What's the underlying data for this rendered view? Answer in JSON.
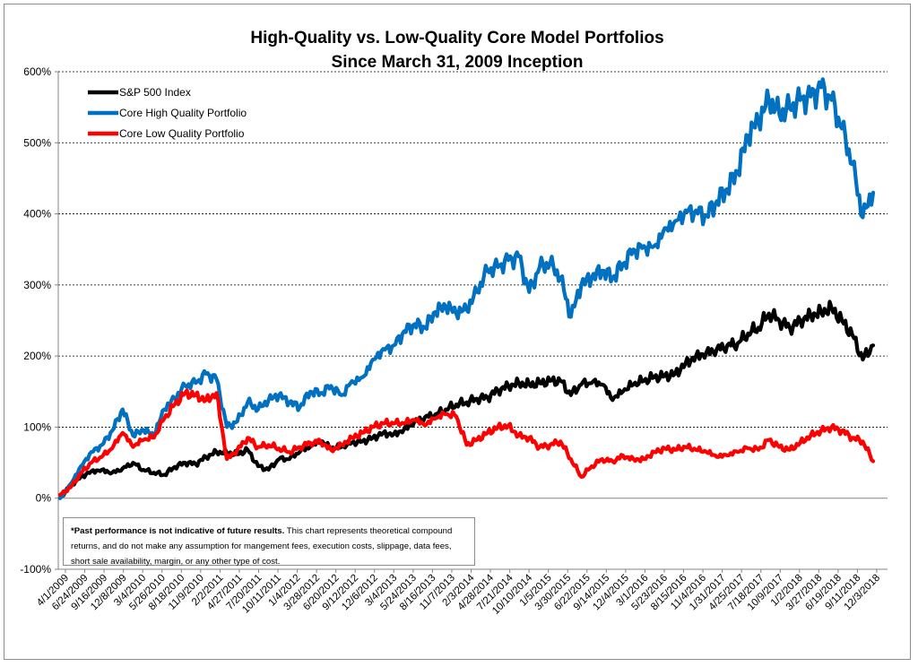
{
  "chart_data": {
    "type": "line",
    "title": "High-Quality vs. Low-Quality Core Model Portfolios",
    "subtitle": "Since March 31, 2009 Inception",
    "xlabel": "",
    "ylabel": "",
    "ylim": [
      -100,
      600
    ],
    "y_ticks": [
      -100,
      0,
      100,
      200,
      300,
      400,
      500,
      600
    ],
    "y_tick_labels": [
      "-100%",
      "0%",
      "100%",
      "200%",
      "300%",
      "400%",
      "500%",
      "600%"
    ],
    "x_tick_labels": [
      "4/1/2009",
      "6/24/2009",
      "9/16/2009",
      "12/8/2009",
      "3/4/2010",
      "5/26/2010",
      "8/18/2010",
      "11/9/2010",
      "2/2/2011",
      "4/27/2011",
      "7/20/2011",
      "10/11/2011",
      "1/4/2012",
      "3/28/2012",
      "6/20/2012",
      "9/12/2012",
      "12/6/2012",
      "3/4/2013",
      "5/24/2013",
      "8/16/2013",
      "11/7/2013",
      "2/3/2014",
      "4/28/2014",
      "7/21/2014",
      "10/10/2014",
      "1/5/2015",
      "3/30/2015",
      "6/22/2015",
      "9/14/2015",
      "12/4/2015",
      "3/1/2016",
      "5/23/2016",
      "8/15/2016",
      "11/4/2016",
      "1/31/2017",
      "4/25/2017",
      "7/18/2017",
      "10/9/2017",
      "1/2/2018",
      "3/27/2018",
      "6/19/2018",
      "9/11/2018",
      "12/3/2018"
    ],
    "legend_position": "top-left",
    "series": [
      {
        "name": "S&P 500 Index",
        "color": "#000000",
        "values": [
          0,
          18,
          30,
          38,
          40,
          36,
          42,
          50,
          40,
          36,
          33,
          44,
          50,
          48,
          58,
          65,
          64,
          62,
          68,
          45,
          40,
          55,
          55,
          65,
          72,
          80,
          70,
          72,
          78,
          80,
          85,
          92,
          90,
          97,
          108,
          114,
          118,
          125,
          132,
          135,
          140,
          142,
          152,
          158,
          162,
          160,
          162,
          165,
          165,
          145,
          160,
          162,
          160,
          138,
          150,
          160,
          165,
          170,
          172,
          175,
          190,
          200,
          205,
          210,
          215,
          218,
          232,
          240,
          260,
          250,
          240,
          250,
          258,
          262,
          268,
          250,
          230,
          195,
          215
        ]
      },
      {
        "name": "Core High Quality Portfolio",
        "color": "#0070c0",
        "values": [
          0,
          20,
          45,
          65,
          75,
          95,
          125,
          88,
          96,
          88,
          125,
          140,
          158,
          162,
          175,
          168,
          100,
          108,
          135,
          125,
          138,
          145,
          135,
          128,
          150,
          148,
          158,
          145,
          165,
          170,
          195,
          210,
          215,
          235,
          245,
          240,
          262,
          270,
          260,
          265,
          290,
          320,
          325,
          335,
          340,
          290,
          325,
          330,
          310,
          255,
          300,
          310,
          320,
          310,
          330,
          350,
          355,
          355,
          380,
          390,
          405,
          405,
          398,
          418,
          435,
          460,
          510,
          530,
          560,
          540,
          548,
          560,
          565,
          578,
          560,
          520,
          470,
          395,
          430
        ]
      },
      {
        "name": "Core Low Quality Portfolio",
        "color": "#ff0000",
        "values": [
          5,
          15,
          35,
          50,
          58,
          70,
          92,
          72,
          82,
          85,
          112,
          132,
          148,
          145,
          138,
          148,
          55,
          68,
          85,
          72,
          75,
          70,
          65,
          72,
          78,
          80,
          68,
          75,
          85,
          92,
          100,
          105,
          105,
          105,
          110,
          102,
          112,
          118,
          115,
          75,
          82,
          92,
          100,
          102,
          88,
          85,
          72,
          75,
          80,
          55,
          30,
          45,
          55,
          52,
          60,
          55,
          55,
          65,
          70,
          68,
          72,
          68,
          65,
          58,
          60,
          65,
          70,
          68,
          82,
          72,
          68,
          78,
          88,
          95,
          100,
          95,
          85,
          80,
          52
        ]
      }
    ],
    "disclaimer_bold": "*Past performance is not indicative of future results.",
    "disclaimer_text": " This chart represents theoretical compound returns, and do not make any assumption  for mangement fees, execution costs, slippage, data fees, short sale availability, margin, or any other type of cost."
  }
}
